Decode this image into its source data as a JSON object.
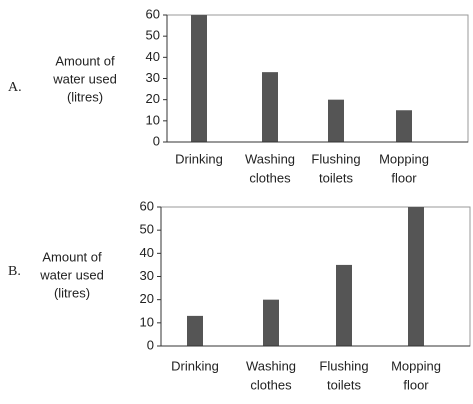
{
  "chart_data": [
    {
      "type": "bar",
      "label": "A.",
      "y_label": [
        "Amount of",
        "water used",
        "(litres)"
      ],
      "categories": [
        [
          "Drinking"
        ],
        [
          "Washing",
          "clothes"
        ],
        [
          "Flushing",
          "toilets"
        ],
        [
          "Mopping",
          "floor"
        ]
      ],
      "values": [
        60,
        33,
        20,
        15
      ],
      "color": "#555555",
      "ylim": [
        0,
        60
      ],
      "yticks": [
        0,
        10,
        20,
        30,
        40,
        50,
        60
      ]
    },
    {
      "type": "bar",
      "label": "B.",
      "y_label": [
        "Amount of",
        "water used",
        "(litres)"
      ],
      "categories": [
        [
          "Drinking"
        ],
        [
          "Washing",
          "clothes"
        ],
        [
          "Flushing",
          "toilets"
        ],
        [
          "Mopping",
          "floor"
        ]
      ],
      "values": [
        13,
        20,
        35,
        60
      ],
      "color": "#555555",
      "ylim": [
        0,
        60
      ],
      "yticks": [
        0,
        10,
        20,
        30,
        40,
        50,
        60
      ]
    }
  ]
}
